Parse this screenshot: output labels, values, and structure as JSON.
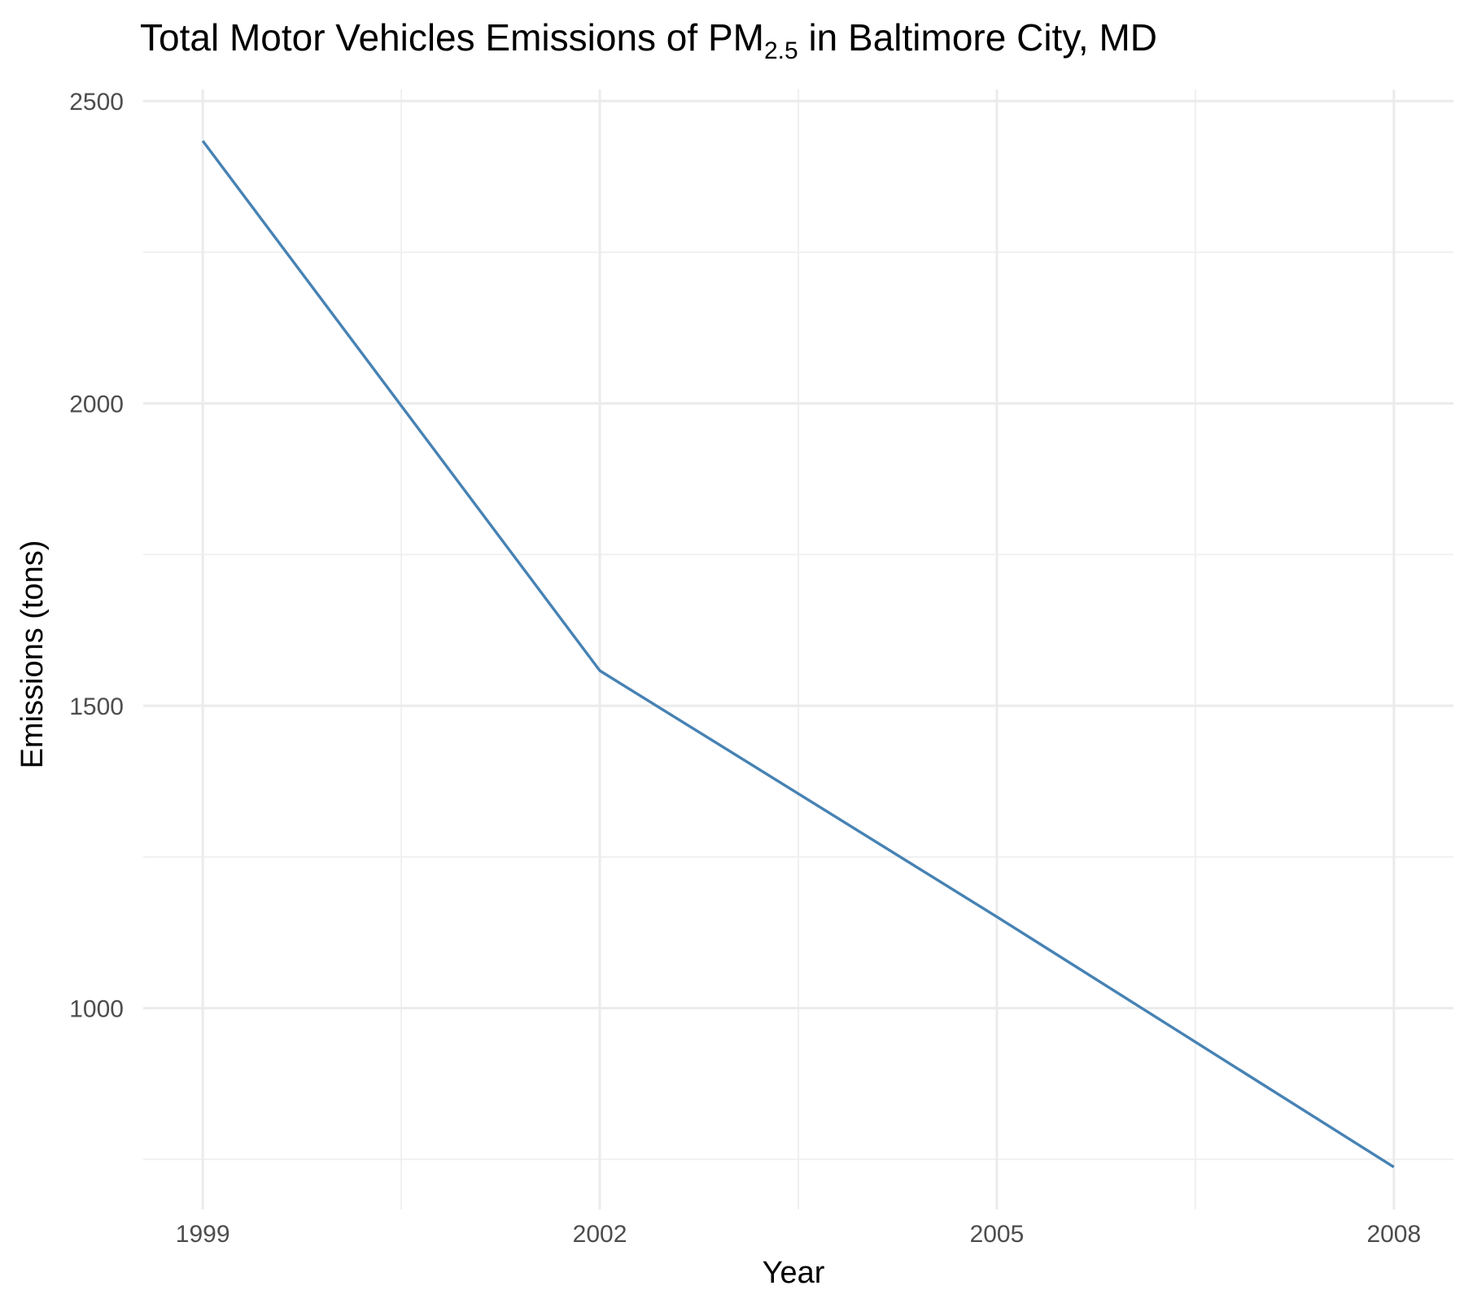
{
  "chart_data": {
    "type": "line",
    "title": "Total Motor Vehicles Emissions of PM",
    "title_subscript": "2.5",
    "title_suffix": " in Baltimore City, MD",
    "xlabel": "Year",
    "ylabel": "Emissions (tons)",
    "x": [
      1999,
      2002,
      2005,
      2008
    ],
    "series": [
      {
        "values": [
          2434,
          1558,
          1151,
          737
        ]
      }
    ],
    "x_ticks": [
      1999,
      2002,
      2005,
      2008
    ],
    "y_ticks": [
      1000,
      1500,
      2000,
      2500
    ],
    "xlim": [
      1998.55,
      2008.45
    ],
    "ylim": [
      667,
      2519
    ],
    "grid": true,
    "line_color": "#4682b4"
  }
}
